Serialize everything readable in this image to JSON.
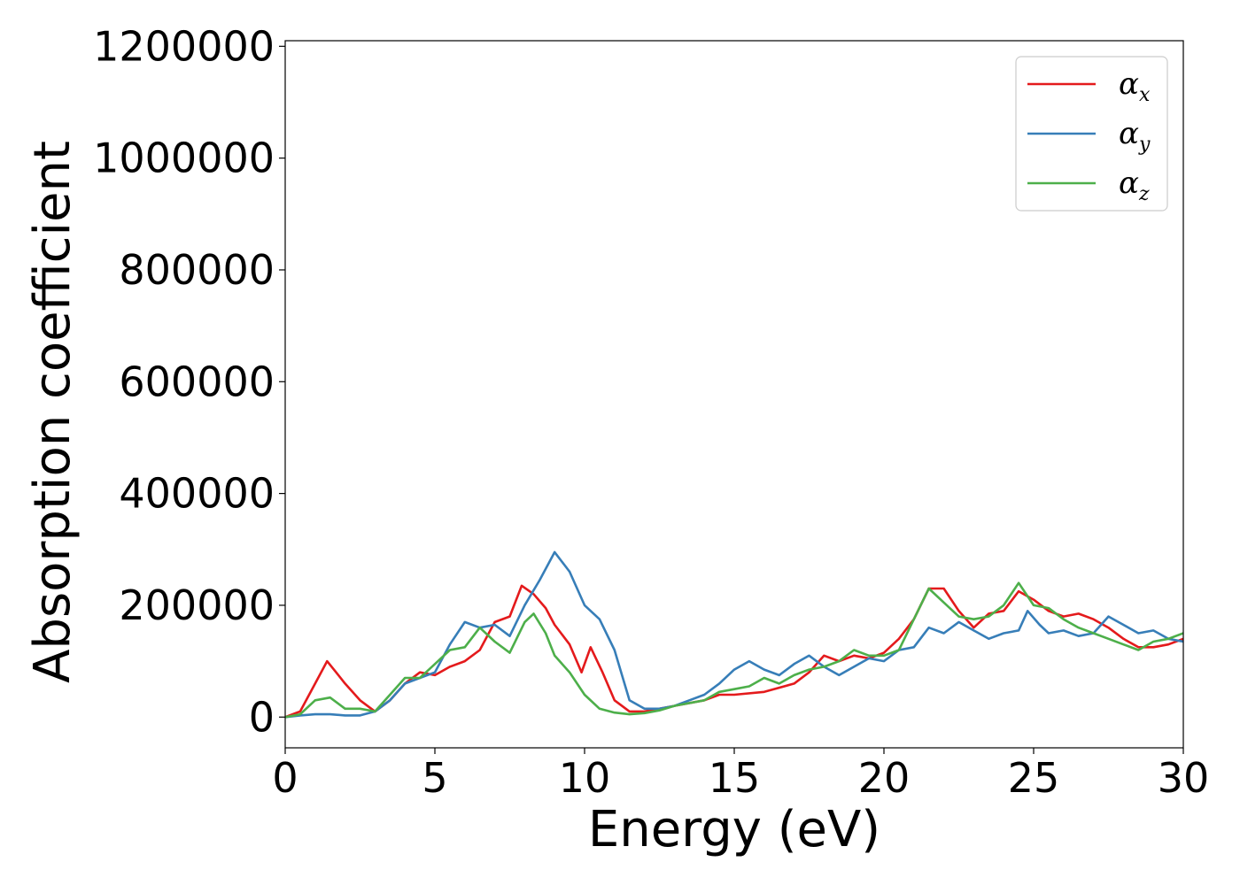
{
  "chart_data": {
    "type": "line",
    "title": "",
    "xlabel": "Energy (eV)",
    "ylabel": "Absorption coefficient",
    "xlim": [
      0,
      30
    ],
    "ylim": [
      -55000,
      1210000
    ],
    "xticks": [
      0,
      5,
      10,
      15,
      20,
      25,
      30
    ],
    "xtick_labels": [
      "0",
      "5",
      "10",
      "15",
      "20",
      "25",
      "30"
    ],
    "yticks": [
      0,
      200000,
      400000,
      600000,
      800000,
      1000000,
      1200000
    ],
    "ytick_labels": [
      "0",
      "200000",
      "400000",
      "600000",
      "800000",
      "1000000",
      "1200000"
    ],
    "grid": false,
    "legend_position": "top-right",
    "series": [
      {
        "name": "α_x",
        "label_main": "α",
        "label_sub": "x",
        "color": "#e41a1c",
        "points": [
          [
            0,
            0
          ],
          [
            0.5,
            10000
          ],
          [
            1.0,
            60000
          ],
          [
            1.4,
            100000
          ],
          [
            1.7,
            80000
          ],
          [
            2.0,
            60000
          ],
          [
            2.5,
            30000
          ],
          [
            3.0,
            10000
          ],
          [
            3.5,
            30000
          ],
          [
            4.0,
            60000
          ],
          [
            4.5,
            80000
          ],
          [
            5.0,
            75000
          ],
          [
            5.5,
            90000
          ],
          [
            6.0,
            100000
          ],
          [
            6.5,
            120000
          ],
          [
            7.0,
            170000
          ],
          [
            7.5,
            180000
          ],
          [
            7.9,
            235000
          ],
          [
            8.3,
            220000
          ],
          [
            8.7,
            195000
          ],
          [
            9.0,
            165000
          ],
          [
            9.5,
            130000
          ],
          [
            9.9,
            80000
          ],
          [
            10.2,
            125000
          ],
          [
            10.6,
            80000
          ],
          [
            11.0,
            30000
          ],
          [
            11.5,
            10000
          ],
          [
            12.0,
            10000
          ],
          [
            12.5,
            15000
          ],
          [
            13.0,
            20000
          ],
          [
            14.0,
            30000
          ],
          [
            14.5,
            40000
          ],
          [
            15.0,
            40000
          ],
          [
            16.0,
            45000
          ],
          [
            17.0,
            60000
          ],
          [
            17.5,
            80000
          ],
          [
            18.0,
            110000
          ],
          [
            18.5,
            100000
          ],
          [
            19.0,
            110000
          ],
          [
            19.5,
            105000
          ],
          [
            20.0,
            115000
          ],
          [
            20.5,
            140000
          ],
          [
            21.0,
            175000
          ],
          [
            21.5,
            230000
          ],
          [
            22.0,
            230000
          ],
          [
            22.5,
            190000
          ],
          [
            23.0,
            160000
          ],
          [
            23.5,
            185000
          ],
          [
            24.0,
            190000
          ],
          [
            24.5,
            225000
          ],
          [
            25.0,
            210000
          ],
          [
            25.5,
            190000
          ],
          [
            26.0,
            180000
          ],
          [
            26.5,
            185000
          ],
          [
            27.0,
            175000
          ],
          [
            27.5,
            160000
          ],
          [
            28.0,
            140000
          ],
          [
            28.5,
            125000
          ],
          [
            29.0,
            125000
          ],
          [
            29.5,
            130000
          ],
          [
            30.0,
            140000
          ]
        ]
      },
      {
        "name": "α_y",
        "label_main": "α",
        "label_sub": "y",
        "color": "#377eb8",
        "points": [
          [
            0,
            0
          ],
          [
            0.5,
            3000
          ],
          [
            1.0,
            5000
          ],
          [
            1.5,
            5000
          ],
          [
            2.0,
            3000
          ],
          [
            2.5,
            3000
          ],
          [
            3.0,
            10000
          ],
          [
            3.5,
            30000
          ],
          [
            4.0,
            60000
          ],
          [
            4.5,
            70000
          ],
          [
            5.0,
            80000
          ],
          [
            5.5,
            130000
          ],
          [
            6.0,
            170000
          ],
          [
            6.5,
            160000
          ],
          [
            7.0,
            165000
          ],
          [
            7.5,
            145000
          ],
          [
            8.0,
            200000
          ],
          [
            8.5,
            245000
          ],
          [
            9.0,
            295000
          ],
          [
            9.5,
            260000
          ],
          [
            10.0,
            200000
          ],
          [
            10.5,
            175000
          ],
          [
            11.0,
            120000
          ],
          [
            11.5,
            30000
          ],
          [
            12.0,
            15000
          ],
          [
            12.5,
            15000
          ],
          [
            13.0,
            20000
          ],
          [
            13.5,
            30000
          ],
          [
            14.0,
            40000
          ],
          [
            14.5,
            60000
          ],
          [
            15.0,
            85000
          ],
          [
            15.5,
            100000
          ],
          [
            16.0,
            85000
          ],
          [
            16.5,
            75000
          ],
          [
            17.0,
            95000
          ],
          [
            17.5,
            110000
          ],
          [
            18.0,
            90000
          ],
          [
            18.5,
            75000
          ],
          [
            19.0,
            90000
          ],
          [
            19.5,
            105000
          ],
          [
            20.0,
            100000
          ],
          [
            20.5,
            120000
          ],
          [
            21.0,
            125000
          ],
          [
            21.5,
            160000
          ],
          [
            22.0,
            150000
          ],
          [
            22.5,
            170000
          ],
          [
            23.0,
            155000
          ],
          [
            23.5,
            140000
          ],
          [
            24.0,
            150000
          ],
          [
            24.5,
            155000
          ],
          [
            24.8,
            190000
          ],
          [
            25.2,
            165000
          ],
          [
            25.5,
            150000
          ],
          [
            26.0,
            155000
          ],
          [
            26.5,
            145000
          ],
          [
            27.0,
            150000
          ],
          [
            27.5,
            180000
          ],
          [
            28.0,
            165000
          ],
          [
            28.5,
            150000
          ],
          [
            29.0,
            155000
          ],
          [
            29.5,
            140000
          ],
          [
            30.0,
            135000
          ]
        ]
      },
      {
        "name": "α_z",
        "label_main": "α",
        "label_sub": "z",
        "color": "#4daf4a",
        "points": [
          [
            0,
            0
          ],
          [
            0.5,
            5000
          ],
          [
            1.0,
            30000
          ],
          [
            1.5,
            35000
          ],
          [
            2.0,
            15000
          ],
          [
            2.5,
            15000
          ],
          [
            3.0,
            10000
          ],
          [
            3.5,
            40000
          ],
          [
            4.0,
            70000
          ],
          [
            4.5,
            70000
          ],
          [
            5.0,
            95000
          ],
          [
            5.5,
            120000
          ],
          [
            6.0,
            125000
          ],
          [
            6.5,
            160000
          ],
          [
            7.0,
            135000
          ],
          [
            7.5,
            115000
          ],
          [
            8.0,
            170000
          ],
          [
            8.3,
            185000
          ],
          [
            8.7,
            150000
          ],
          [
            9.0,
            110000
          ],
          [
            9.5,
            80000
          ],
          [
            10.0,
            40000
          ],
          [
            10.5,
            15000
          ],
          [
            11.0,
            8000
          ],
          [
            11.5,
            5000
          ],
          [
            12.0,
            7000
          ],
          [
            12.5,
            12000
          ],
          [
            13.0,
            20000
          ],
          [
            14.0,
            30000
          ],
          [
            14.5,
            45000
          ],
          [
            15.0,
            50000
          ],
          [
            15.5,
            55000
          ],
          [
            16.0,
            70000
          ],
          [
            16.5,
            60000
          ],
          [
            17.0,
            75000
          ],
          [
            17.5,
            85000
          ],
          [
            18.0,
            90000
          ],
          [
            18.5,
            100000
          ],
          [
            19.0,
            120000
          ],
          [
            19.5,
            110000
          ],
          [
            20.0,
            110000
          ],
          [
            20.5,
            120000
          ],
          [
            21.0,
            175000
          ],
          [
            21.5,
            230000
          ],
          [
            22.0,
            205000
          ],
          [
            22.5,
            180000
          ],
          [
            23.0,
            175000
          ],
          [
            23.5,
            180000
          ],
          [
            24.0,
            200000
          ],
          [
            24.5,
            240000
          ],
          [
            25.0,
            200000
          ],
          [
            25.5,
            195000
          ],
          [
            26.0,
            175000
          ],
          [
            26.5,
            160000
          ],
          [
            27.0,
            150000
          ],
          [
            27.5,
            140000
          ],
          [
            28.0,
            130000
          ],
          [
            28.5,
            120000
          ],
          [
            29.0,
            135000
          ],
          [
            29.5,
            140000
          ],
          [
            30.0,
            150000
          ]
        ]
      }
    ]
  }
}
